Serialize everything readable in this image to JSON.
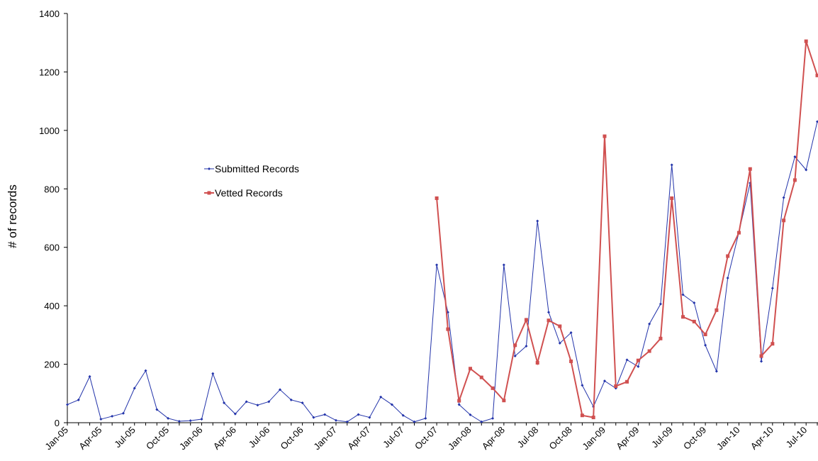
{
  "chart_data": {
    "type": "line",
    "ylabel": "# of records",
    "ylim": [
      0,
      1400
    ],
    "yticks": [
      0,
      200,
      400,
      600,
      800,
      1000,
      1200,
      1400
    ],
    "x": [
      "Jan-05",
      "Feb-05",
      "Mar-05",
      "Apr-05",
      "May-05",
      "Jun-05",
      "Jul-05",
      "Aug-05",
      "Sep-05",
      "Oct-05",
      "Nov-05",
      "Dec-05",
      "Jan-06",
      "Feb-06",
      "Mar-06",
      "Apr-06",
      "May-06",
      "Jun-06",
      "Jul-06",
      "Aug-06",
      "Sep-06",
      "Oct-06",
      "Nov-06",
      "Dec-06",
      "Jan-07",
      "Feb-07",
      "Mar-07",
      "Apr-07",
      "May-07",
      "Jun-07",
      "Jul-07",
      "Aug-07",
      "Sep-07",
      "Oct-07",
      "Nov-07",
      "Dec-07",
      "Jan-08",
      "Feb-08",
      "Mar-08",
      "Apr-08",
      "May-08",
      "Jun-08",
      "Jul-08",
      "Aug-08",
      "Sep-08",
      "Oct-08",
      "Nov-08",
      "Dec-08",
      "Jan-09",
      "Feb-09",
      "Mar-09",
      "Apr-09",
      "May-09",
      "Jun-09",
      "Jul-09",
      "Aug-09",
      "Sep-09",
      "Oct-09",
      "Nov-09",
      "Dec-09",
      "Jan-10",
      "Feb-10",
      "Mar-10",
      "Apr-10",
      "May-10",
      "Jun-10",
      "Jul-10",
      "Aug-10"
    ],
    "xtick_labels": [
      "Jan-05",
      "Apr-05",
      "Jul-05",
      "Oct-05",
      "Jan-06",
      "Apr-06",
      "Jul-06",
      "Oct-06",
      "Jan-07",
      "Apr-07",
      "Jul-07",
      "Oct-07",
      "Jan-08",
      "Apr-08",
      "Jul-08",
      "Oct-08",
      "Jan-09",
      "Apr-09",
      "Jul-09",
      "Oct-09",
      "Jan-10",
      "Apr-10",
      "Jul-10"
    ],
    "legend_position": "center-left",
    "grid": false,
    "series": [
      {
        "name": "Submitted Records",
        "color": "#2233aa",
        "marker": "diamond",
        "values": [
          62,
          78,
          158,
          12,
          22,
          32,
          118,
          178,
          45,
          15,
          5,
          7,
          12,
          168,
          68,
          30,
          72,
          60,
          72,
          113,
          78,
          68,
          18,
          28,
          8,
          3,
          28,
          18,
          88,
          62,
          25,
          3,
          15,
          540,
          378,
          62,
          27,
          3,
          15,
          540,
          228,
          262,
          690,
          378,
          272,
          308,
          128,
          55,
          143,
          118,
          215,
          192,
          338,
          406,
          882,
          438,
          410,
          265,
          176,
          495,
          652,
          820,
          210,
          460,
          770,
          910,
          865,
          1030
        ]
      },
      {
        "name": "Vetted Records",
        "color": "#d05050",
        "marker": "square",
        "values": [
          null,
          null,
          null,
          null,
          null,
          null,
          null,
          null,
          null,
          null,
          null,
          null,
          null,
          null,
          null,
          null,
          null,
          null,
          null,
          null,
          null,
          null,
          null,
          null,
          null,
          null,
          null,
          null,
          null,
          null,
          null,
          null,
          null,
          768,
          320,
          75,
          185,
          155,
          118,
          76,
          265,
          352,
          205,
          350,
          330,
          210,
          25,
          18,
          980,
          125,
          140,
          213,
          245,
          288,
          768,
          362,
          346,
          302,
          385,
          570,
          650,
          868,
          228,
          270,
          692,
          830,
          1305,
          1188
        ]
      }
    ]
  }
}
